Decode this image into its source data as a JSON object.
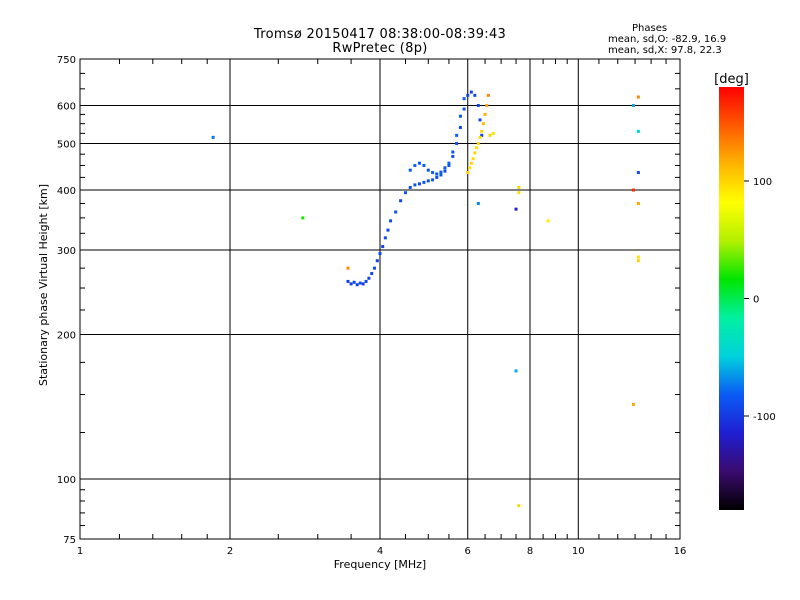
{
  "chart_data": {
    "type": "scatter",
    "title": "Tromsø 20150417 08:38:00-08:39:43",
    "subtitle": "RwPretec (8p)",
    "xlabel": "Frequency [MHz]",
    "ylabel": "Stationary phase Virtual Height [km]",
    "xscale": "log",
    "yscale": "log",
    "xlim": [
      1,
      16
    ],
    "ylim": [
      75,
      750
    ],
    "xticks": [
      1,
      2,
      4,
      6,
      8,
      10,
      16
    ],
    "xtick_labels": [
      "1",
      "2",
      "4",
      "6",
      "8",
      "10",
      "16"
    ],
    "yticks": [
      75,
      100,
      200,
      300,
      400,
      500,
      600,
      750
    ],
    "ytick_labels": [
      "75",
      "100",
      "200",
      "300",
      "400",
      "500",
      "600",
      "750"
    ],
    "grid": true,
    "colorbar": {
      "label": "[deg]",
      "range": [
        -180,
        180
      ],
      "ticks": [
        100,
        0,
        -100
      ],
      "tick_labels": [
        "100",
        "0",
        "-100"
      ],
      "colors": [
        "#000000",
        "#3a0a6e",
        "#1f1fd2",
        "#0a5af5",
        "#00d2dc",
        "#00f0a0",
        "#00e600",
        "#b4f000",
        "#ffff00",
        "#ffb400",
        "#ff5a00",
        "#ff0000"
      ]
    },
    "stats": {
      "title": "Phases",
      "o_mode": "mean, sd,O: -82.9, 16.9",
      "x_mode": "mean, sd,X:  97.8, 22.3"
    },
    "series": [
      {
        "mode": "O",
        "points": [
          {
            "x": 1.85,
            "y": 515,
            "phase": -75
          },
          {
            "x": 3.45,
            "y": 258,
            "phase": -95
          },
          {
            "x": 3.5,
            "y": 255,
            "phase": -95
          },
          {
            "x": 3.55,
            "y": 257,
            "phase": -90
          },
          {
            "x": 3.6,
            "y": 254,
            "phase": -95
          },
          {
            "x": 3.65,
            "y": 256,
            "phase": -90
          },
          {
            "x": 3.7,
            "y": 255,
            "phase": -95
          },
          {
            "x": 3.75,
            "y": 258,
            "phase": -90
          },
          {
            "x": 3.8,
            "y": 262,
            "phase": -95
          },
          {
            "x": 3.85,
            "y": 268,
            "phase": -90
          },
          {
            "x": 3.9,
            "y": 275,
            "phase": -90
          },
          {
            "x": 3.95,
            "y": 285,
            "phase": -95
          },
          {
            "x": 4.0,
            "y": 295,
            "phase": -90
          },
          {
            "x": 4.05,
            "y": 305,
            "phase": -95
          },
          {
            "x": 4.1,
            "y": 318,
            "phase": -90
          },
          {
            "x": 4.15,
            "y": 330,
            "phase": -95
          },
          {
            "x": 4.2,
            "y": 345,
            "phase": -90
          },
          {
            "x": 4.3,
            "y": 360,
            "phase": -85
          },
          {
            "x": 4.4,
            "y": 380,
            "phase": -90
          },
          {
            "x": 4.5,
            "y": 395,
            "phase": -85
          },
          {
            "x": 4.6,
            "y": 405,
            "phase": -90
          },
          {
            "x": 4.7,
            "y": 410,
            "phase": -85
          },
          {
            "x": 4.8,
            "y": 412,
            "phase": -90
          },
          {
            "x": 4.9,
            "y": 415,
            "phase": -85
          },
          {
            "x": 5.0,
            "y": 418,
            "phase": -90
          },
          {
            "x": 5.1,
            "y": 420,
            "phase": -85
          },
          {
            "x": 5.2,
            "y": 425,
            "phase": -90
          },
          {
            "x": 5.3,
            "y": 430,
            "phase": -85
          },
          {
            "x": 5.4,
            "y": 438,
            "phase": -90
          },
          {
            "x": 5.5,
            "y": 450,
            "phase": -85
          },
          {
            "x": 5.6,
            "y": 470,
            "phase": -90
          },
          {
            "x": 5.7,
            "y": 500,
            "phase": -85
          },
          {
            "x": 5.8,
            "y": 540,
            "phase": -90
          },
          {
            "x": 5.9,
            "y": 590,
            "phase": -85
          },
          {
            "x": 6.0,
            "y": 630,
            "phase": -90
          },
          {
            "x": 4.6,
            "y": 440,
            "phase": -85
          },
          {
            "x": 4.7,
            "y": 450,
            "phase": -80
          },
          {
            "x": 4.8,
            "y": 455,
            "phase": -85
          },
          {
            "x": 4.9,
            "y": 450,
            "phase": -80
          },
          {
            "x": 5.0,
            "y": 440,
            "phase": -85
          },
          {
            "x": 5.1,
            "y": 435,
            "phase": -80
          },
          {
            "x": 5.2,
            "y": 432,
            "phase": -85
          },
          {
            "x": 5.3,
            "y": 436,
            "phase": -80
          },
          {
            "x": 5.4,
            "y": 445,
            "phase": -85
          },
          {
            "x": 5.5,
            "y": 455,
            "phase": -80
          },
          {
            "x": 5.6,
            "y": 480,
            "phase": -85
          },
          {
            "x": 5.7,
            "y": 520,
            "phase": -80
          },
          {
            "x": 5.8,
            "y": 570,
            "phase": -85
          },
          {
            "x": 5.9,
            "y": 620,
            "phase": -80
          },
          {
            "x": 6.1,
            "y": 640,
            "phase": -95
          },
          {
            "x": 6.2,
            "y": 630,
            "phase": -90
          },
          {
            "x": 6.3,
            "y": 600,
            "phase": -95
          },
          {
            "x": 6.35,
            "y": 560,
            "phase": -90
          },
          {
            "x": 6.4,
            "y": 520,
            "phase": -95
          },
          {
            "x": 6.3,
            "y": 375,
            "phase": -70
          },
          {
            "x": 7.5,
            "y": 365,
            "phase": -115
          },
          {
            "x": 7.5,
            "y": 168,
            "phase": -60
          },
          {
            "x": 12.9,
            "y": 600,
            "phase": -60
          },
          {
            "x": 13.2,
            "y": 530,
            "phase": -50
          },
          {
            "x": 13.2,
            "y": 435,
            "phase": -90
          }
        ]
      },
      {
        "mode": "X",
        "points": [
          {
            "x": 2.8,
            "y": 350,
            "phase": 20
          },
          {
            "x": 3.45,
            "y": 275,
            "phase": 130
          },
          {
            "x": 6.0,
            "y": 435,
            "phase": 100
          },
          {
            "x": 6.05,
            "y": 445,
            "phase": 95
          },
          {
            "x": 6.1,
            "y": 455,
            "phase": 100
          },
          {
            "x": 6.15,
            "y": 465,
            "phase": 95
          },
          {
            "x": 6.2,
            "y": 478,
            "phase": 100
          },
          {
            "x": 6.25,
            "y": 490,
            "phase": 95
          },
          {
            "x": 6.3,
            "y": 500,
            "phase": 100
          },
          {
            "x": 6.35,
            "y": 515,
            "phase": 95
          },
          {
            "x": 6.4,
            "y": 530,
            "phase": 100
          },
          {
            "x": 6.45,
            "y": 550,
            "phase": 110
          },
          {
            "x": 6.5,
            "y": 575,
            "phase": 115
          },
          {
            "x": 6.55,
            "y": 600,
            "phase": 120
          },
          {
            "x": 6.6,
            "y": 630,
            "phase": 130
          },
          {
            "x": 6.65,
            "y": 520,
            "phase": 100
          },
          {
            "x": 6.75,
            "y": 525,
            "phase": 95
          },
          {
            "x": 7.6,
            "y": 405,
            "phase": 100
          },
          {
            "x": 7.6,
            "y": 395,
            "phase": 95
          },
          {
            "x": 8.7,
            "y": 345,
            "phase": 90
          },
          {
            "x": 7.6,
            "y": 88,
            "phase": 100
          },
          {
            "x": 13.2,
            "y": 625,
            "phase": 130
          },
          {
            "x": 12.9,
            "y": 400,
            "phase": 165
          },
          {
            "x": 13.2,
            "y": 375,
            "phase": 120
          },
          {
            "x": 13.2,
            "y": 290,
            "phase": 95
          },
          {
            "x": 13.2,
            "y": 285,
            "phase": 100
          },
          {
            "x": 12.9,
            "y": 143,
            "phase": 120
          }
        ]
      }
    ]
  }
}
